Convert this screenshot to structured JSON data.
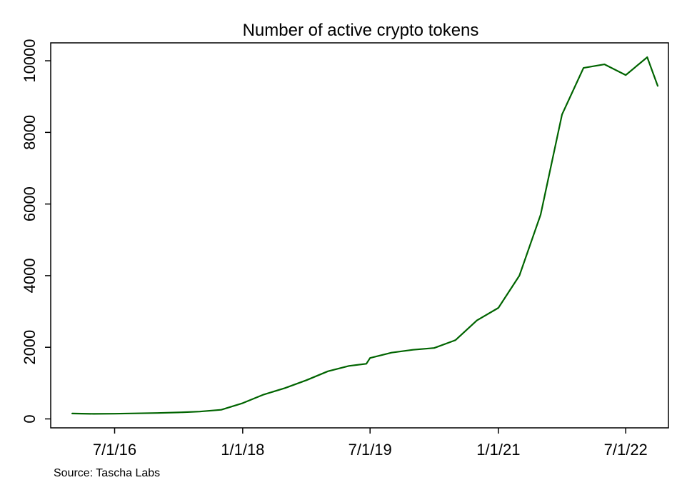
{
  "chart_data": {
    "type": "line",
    "title": "Number of active crypto tokens",
    "xlabel": "",
    "ylabel": "",
    "x_ticks": [
      {
        "date": "2016-07-01",
        "label": "7/1/16"
      },
      {
        "date": "2018-01-01",
        "label": "1/1/18"
      },
      {
        "date": "2019-07-01",
        "label": "7/1/19"
      },
      {
        "date": "2021-01-01",
        "label": "1/1/21"
      },
      {
        "date": "2022-07-01",
        "label": "7/1/22"
      }
    ],
    "y_ticks": [
      0,
      2000,
      4000,
      6000,
      8000,
      10000
    ],
    "xlim": [
      "2015-10-01",
      "2022-12-31"
    ],
    "ylim": [
      -250,
      10500
    ],
    "grid": false,
    "series": [
      {
        "name": "Active crypto tokens",
        "color": "#006400",
        "x": [
          "2016-01-01",
          "2016-04-01",
          "2016-07-01",
          "2016-10-01",
          "2017-01-01",
          "2017-04-01",
          "2017-07-01",
          "2017-10-01",
          "2018-01-01",
          "2018-04-01",
          "2018-07-01",
          "2018-10-01",
          "2019-01-01",
          "2019-04-01",
          "2019-06-15",
          "2019-07-01",
          "2019-10-01",
          "2020-01-01",
          "2020-04-01",
          "2020-07-01",
          "2020-10-01",
          "2021-01-01",
          "2021-04-01",
          "2021-07-01",
          "2021-10-01",
          "2022-01-01",
          "2022-04-01",
          "2022-07-01",
          "2022-10-01",
          "2022-11-15"
        ],
        "values": [
          150,
          140,
          145,
          155,
          165,
          180,
          205,
          255,
          440,
          680,
          860,
          1080,
          1330,
          1480,
          1540,
          1700,
          1850,
          1930,
          1980,
          2200,
          2750,
          3100,
          4000,
          5700,
          8500,
          9800,
          9900,
          9600,
          10100,
          9300
        ]
      }
    ]
  },
  "source": {
    "text": "Source: Tascha Labs"
  }
}
